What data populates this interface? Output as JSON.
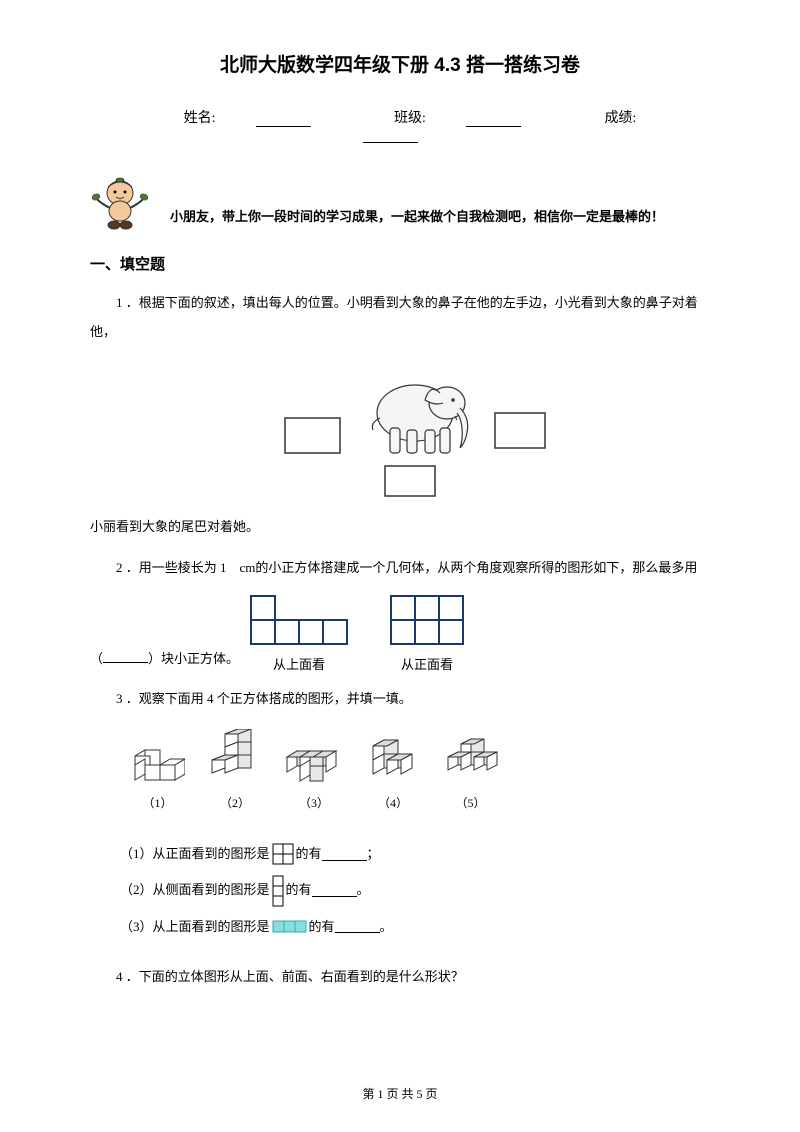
{
  "title": "北师大版数学四年级下册 4.3 搭一搭练习卷",
  "info": {
    "name_label": "姓名:",
    "class_label": "班级:",
    "score_label": "成绩:"
  },
  "encourage": "小朋友，带上你一段时间的学习成果，一起来做个自我检测吧，相信你一定是最棒的！",
  "section1": "一、填空题",
  "q1": {
    "num": "1 ．",
    "text": "根据下面的叙述，填出每人的位置。小明看到大象的鼻子在他的左手边，小光看到大象的鼻子对着他，",
    "text2": "小丽看到大象的尾巴对着她。"
  },
  "q2": {
    "num": "2 ．",
    "text1": "用一些棱长为 1　cm的小正方体搭建成一个几何体，从两个角度观察所得的图形如下，那么最多用",
    "text2_prefix": "（",
    "text2_suffix": "）块小正方体。",
    "view_top_label": "从上面看",
    "view_front_label": "从正面看",
    "top_view": {
      "grid": [
        [
          1,
          0,
          0,
          0
        ],
        [
          1,
          1,
          1,
          1
        ]
      ],
      "cell_size": 24,
      "stroke": "#1a3a6e",
      "stroke_width": 2
    },
    "front_view": {
      "grid": [
        [
          1,
          1,
          1
        ],
        [
          1,
          1,
          1
        ]
      ],
      "cell_size": 24,
      "stroke": "#1a3a6e",
      "stroke_width": 2
    }
  },
  "q3": {
    "num": "3 ．",
    "text": "观察下面用 4 个正方体搭成的图形，并填一填。",
    "labels": [
      "（1）",
      "（2）",
      "（3）",
      "（4）",
      "（5）"
    ],
    "sub1_prefix": "（1）从正面看到的图形是",
    "sub1_suffix": "的有",
    "sub1_end": "；",
    "sub2_prefix": "（2）从侧面看到的图形是",
    "sub2_suffix": "的有",
    "sub2_end": "。",
    "sub3_prefix": "（3）从上面看到的图形是",
    "sub3_suffix": "的有",
    "sub3_end": "。",
    "pattern1": {
      "cols": 2,
      "rows": 2,
      "fill": [
        [
          1,
          1
        ],
        [
          1,
          1
        ]
      ],
      "size": 10,
      "stroke": "#000"
    },
    "pattern2": {
      "cols": 1,
      "rows": 3,
      "fill": [
        [
          1
        ],
        [
          1
        ],
        [
          1
        ]
      ],
      "size": 10,
      "stroke": "#000"
    },
    "pattern3": {
      "cols": 3,
      "rows": 1,
      "fill": [
        [
          1,
          1,
          1
        ]
      ],
      "size": 11,
      "stroke": "#3aa",
      "fillcolor": "#8dd"
    }
  },
  "q4": {
    "num": "4 ．",
    "text": "下面的立体图形从上面、前面、右面看到的是什么形状？"
  },
  "footer": "第 1 页 共 5 页",
  "colors": {
    "cube_stroke": "#333333",
    "cube_fill": "#ffffff",
    "mascot_green": "#4a7c2e",
    "mascot_skin": "#f4c89a"
  }
}
